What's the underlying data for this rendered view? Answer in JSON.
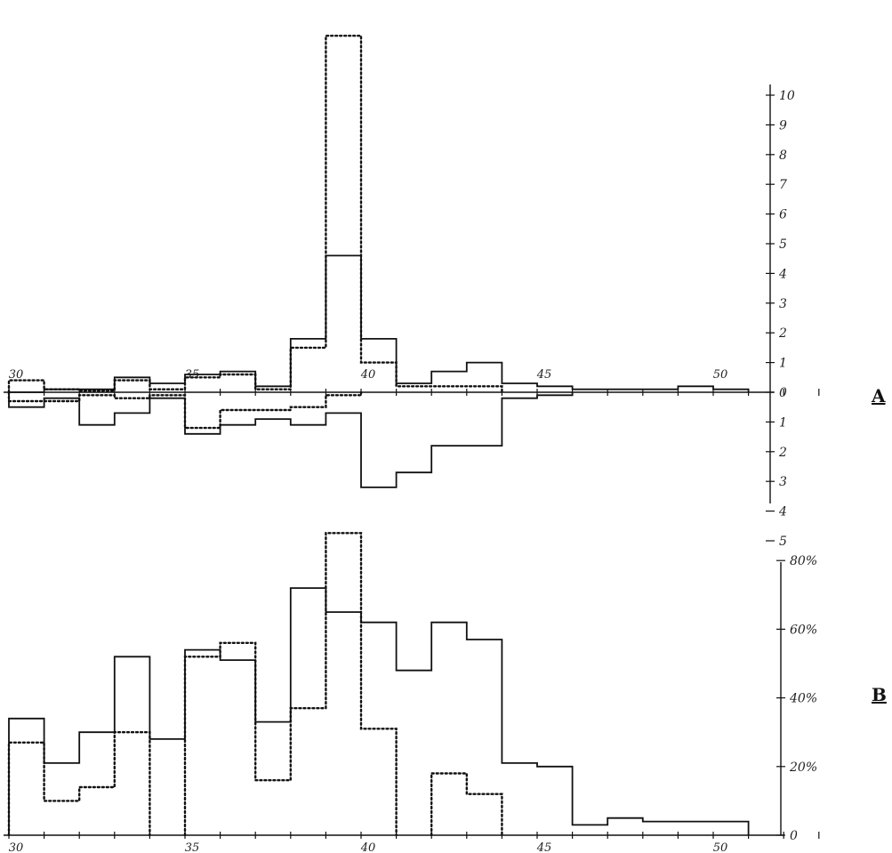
{
  "chart_data": [
    {
      "panel_label": "A",
      "type": "bar",
      "style": "diverging step histogram",
      "bin_width": 1,
      "xlim": [
        30,
        53
      ],
      "ylim": [
        -5,
        10
      ],
      "grid": false,
      "x_ticks": [
        {
          "value": 30,
          "label": "30"
        },
        {
          "value": 35,
          "label": "35"
        },
        {
          "value": 40,
          "label": "40"
        },
        {
          "value": 45,
          "label": "45"
        },
        {
          "value": 50,
          "label": "50"
        }
      ],
      "y_ticks": [
        {
          "value": 10,
          "label": "10"
        },
        {
          "value": 9,
          "label": "9"
        },
        {
          "value": 8,
          "label": "8"
        },
        {
          "value": 7,
          "label": "7"
        },
        {
          "value": 6,
          "label": "6"
        },
        {
          "value": 5,
          "label": "5"
        },
        {
          "value": 4,
          "label": "4"
        },
        {
          "value": 3,
          "label": "3"
        },
        {
          "value": 2,
          "label": "2"
        },
        {
          "value": 1,
          "label": "1"
        },
        {
          "value": 0,
          "label": "0"
        },
        {
          "value": -1,
          "label": "1"
        },
        {
          "value": -2,
          "label": "2"
        },
        {
          "value": -3,
          "label": "3"
        },
        {
          "value": -4,
          "label": "4"
        },
        {
          "value": -5,
          "label": "5"
        }
      ],
      "series": [
        {
          "line_style": "solid",
          "direction": "up",
          "color": "#111111",
          "bins": [
            [
              30,
              0
            ],
            [
              31,
              0.1
            ],
            [
              32,
              0.1
            ],
            [
              33,
              0.5
            ],
            [
              34,
              0.3
            ],
            [
              35,
              0.6
            ],
            [
              36,
              0.7
            ],
            [
              37,
              0.2
            ],
            [
              38,
              1.8
            ],
            [
              39,
              4.6
            ],
            [
              40,
              1.8
            ],
            [
              41,
              0.3
            ],
            [
              42,
              0.7
            ],
            [
              43,
              1.0
            ],
            [
              44,
              0.3
            ],
            [
              45,
              0.2
            ],
            [
              46,
              0.1
            ],
            [
              47,
              0.1
            ],
            [
              48,
              0.1
            ],
            [
              49,
              0.2
            ],
            [
              50,
              0.1
            ]
          ]
        },
        {
          "line_style": "dotted",
          "direction": "up",
          "color": "#111111",
          "bins": [
            [
              30,
              0.4
            ],
            [
              31,
              0.1
            ],
            [
              32,
              0.05
            ],
            [
              33,
              0.4
            ],
            [
              34,
              0.1
            ],
            [
              35,
              0.5
            ],
            [
              36,
              0.6
            ],
            [
              37,
              0.1
            ],
            [
              38,
              1.5
            ],
            [
              39,
              12.0
            ],
            [
              40,
              1.0
            ],
            [
              41,
              0.2
            ],
            [
              42,
              0.2
            ],
            [
              43,
              0.2
            ]
          ]
        },
        {
          "line_style": "solid",
          "direction": "down",
          "color": "#111111",
          "bins": [
            [
              30,
              -0.5
            ],
            [
              31,
              -0.2
            ],
            [
              32,
              -1.1
            ],
            [
              33,
              -0.7
            ],
            [
              34,
              -0.2
            ],
            [
              35,
              -1.4
            ],
            [
              36,
              -1.1
            ],
            [
              37,
              -0.9
            ],
            [
              38,
              -1.1
            ],
            [
              39,
              -0.7
            ],
            [
              40,
              -3.2
            ],
            [
              41,
              -2.7
            ],
            [
              42,
              -1.8
            ],
            [
              43,
              -1.8
            ],
            [
              44,
              -0.2
            ],
            [
              45,
              -0.1
            ]
          ]
        },
        {
          "line_style": "dotted",
          "direction": "down",
          "color": "#111111",
          "bins": [
            [
              30,
              -0.3
            ],
            [
              31,
              -0.3
            ],
            [
              32,
              -0.1
            ],
            [
              33,
              -0.2
            ],
            [
              34,
              -0.1
            ],
            [
              35,
              -1.2
            ],
            [
              36,
              -0.6
            ],
            [
              37,
              -0.6
            ],
            [
              38,
              -0.5
            ],
            [
              39,
              -0.1
            ]
          ]
        }
      ]
    },
    {
      "panel_label": "B",
      "type": "bar",
      "style": "step histogram",
      "bin_width": 1,
      "xlim": [
        30,
        53
      ],
      "ylim": [
        0,
        85
      ],
      "grid": false,
      "x_ticks": [
        {
          "value": 30,
          "label": "30"
        },
        {
          "value": 35,
          "label": "35"
        },
        {
          "value": 40,
          "label": "40"
        },
        {
          "value": 45,
          "label": "45"
        },
        {
          "value": 50,
          "label": "50"
        }
      ],
      "y_ticks": [
        {
          "value": 80,
          "label": "80%"
        },
        {
          "value": 60,
          "label": "60%"
        },
        {
          "value": 40,
          "label": "40%"
        },
        {
          "value": 20,
          "label": "20%"
        },
        {
          "value": 0,
          "label": "0"
        }
      ],
      "series": [
        {
          "line_style": "solid",
          "color": "#111111",
          "bins": [
            [
              30,
              34
            ],
            [
              31,
              21
            ],
            [
              32,
              30
            ],
            [
              33,
              52
            ],
            [
              34,
              28
            ],
            [
              35,
              54
            ],
            [
              36,
              51
            ],
            [
              37,
              33
            ],
            [
              38,
              72
            ],
            [
              39,
              65
            ],
            [
              40,
              62
            ],
            [
              41,
              48
            ],
            [
              42,
              62
            ],
            [
              43,
              57
            ],
            [
              44,
              21
            ],
            [
              45,
              20
            ],
            [
              46,
              3
            ],
            [
              47,
              5
            ],
            [
              48,
              4
            ],
            [
              49,
              4
            ],
            [
              50,
              4
            ]
          ]
        },
        {
          "line_style": "dotted",
          "color": "#111111",
          "bins": [
            [
              30,
              27
            ],
            [
              31,
              10
            ],
            [
              32,
              14
            ],
            [
              33,
              30
            ],
            [
              34,
              null
            ],
            [
              35,
              52
            ],
            [
              36,
              56
            ],
            [
              37,
              16
            ],
            [
              38,
              37
            ],
            [
              39,
              88
            ],
            [
              40,
              31
            ],
            [
              41,
              null
            ],
            [
              42,
              18
            ],
            [
              43,
              12
            ]
          ]
        }
      ]
    }
  ]
}
